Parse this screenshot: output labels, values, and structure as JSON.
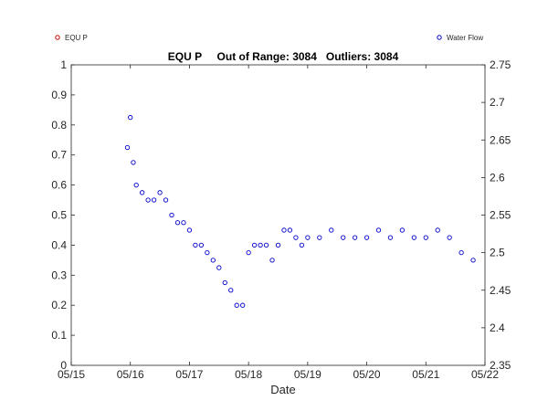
{
  "chart_data": {
    "type": "scatter",
    "title": "EQU P     Out of Range: 3084   Outliers: 3084",
    "xlabel": "Date",
    "ylabel_left": "",
    "ylabel_right": "",
    "x_tick_labels": [
      "05/15",
      "05/16",
      "05/17",
      "05/18",
      "05/19",
      "05/20",
      "05/21",
      "05/22"
    ],
    "xlim": [
      0,
      7
    ],
    "ylim_left": [
      0,
      1
    ],
    "y_left_ticks": [
      "0",
      "0.1",
      "0.2",
      "0.3",
      "0.4",
      "0.5",
      "0.6",
      "0.7",
      "0.8",
      "0.9",
      "1"
    ],
    "ylim_right": [
      2.35,
      2.75
    ],
    "y_right_ticks": [
      "2.35",
      "2.4",
      "2.45",
      "2.5",
      "2.55",
      "2.6",
      "2.65",
      "2.7",
      "2.75"
    ],
    "grid": false,
    "legend": [
      {
        "name": "EQU P",
        "color": "#cc0000",
        "position": "top-left"
      },
      {
        "name": "Water Flow",
        "color": "#0000cc",
        "position": "top-right"
      }
    ],
    "series": [
      {
        "name": "Water Flow",
        "axis": "right",
        "color": "#0000cc",
        "marker": "circle-open",
        "x_days": [
          0.95,
          1.0,
          1.05,
          1.1,
          1.2,
          1.3,
          1.4,
          1.5,
          1.6,
          1.7,
          1.8,
          1.9,
          2.0,
          2.1,
          2.2,
          2.3,
          2.4,
          2.5,
          2.6,
          2.7,
          2.8,
          2.9,
          3.0,
          3.1,
          3.2,
          3.3,
          3.4,
          3.5,
          3.6,
          3.7,
          3.8,
          3.9,
          4.0,
          4.2,
          4.4,
          4.6,
          4.8,
          5.0,
          5.2,
          5.4,
          5.6,
          5.8,
          6.0,
          6.2,
          6.4,
          6.6,
          6.8
        ],
        "values": [
          2.64,
          2.68,
          2.62,
          2.59,
          2.58,
          2.57,
          2.57,
          2.58,
          2.57,
          2.55,
          2.54,
          2.54,
          2.53,
          2.51,
          2.51,
          2.5,
          2.49,
          2.48,
          2.46,
          2.45,
          2.43,
          2.43,
          2.5,
          2.51,
          2.51,
          2.51,
          2.49,
          2.51,
          2.53,
          2.53,
          2.52,
          2.51,
          2.52,
          2.52,
          2.53,
          2.52,
          2.52,
          2.52,
          2.53,
          2.52,
          2.53,
          2.52,
          2.52,
          2.53,
          2.52,
          2.5,
          2.49
        ]
      }
    ]
  }
}
